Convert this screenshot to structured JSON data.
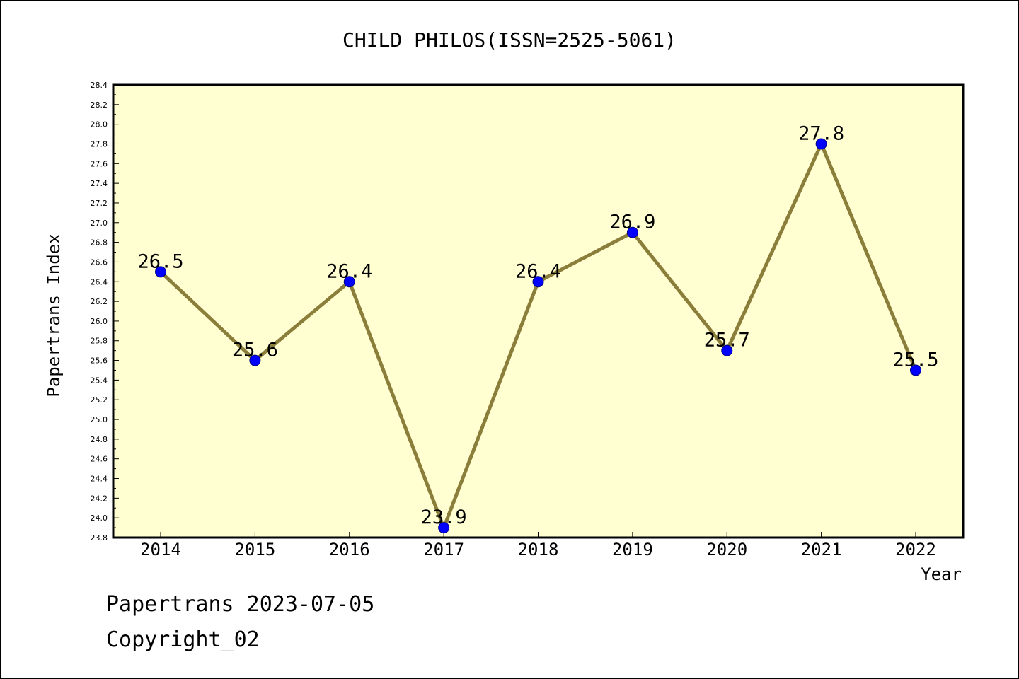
{
  "chart_data": {
    "type": "line",
    "title": "CHILD PHILOS(ISSN=2525-5061)",
    "xlabel": "Year",
    "ylabel": "Papertrans Index",
    "categories": [
      "2014",
      "2015",
      "2016",
      "2017",
      "2018",
      "2019",
      "2020",
      "2021",
      "2022"
    ],
    "values": [
      26.5,
      25.6,
      26.4,
      23.9,
      26.4,
      26.9,
      25.7,
      27.8,
      25.5
    ],
    "data_labels": [
      "26.5",
      "25.6",
      "26.4",
      "23.9",
      "26.4",
      "26.9",
      "25.7",
      "27.8",
      "25.5"
    ],
    "ylim": [
      23.8,
      28.4
    ],
    "ytick_step": 0.2,
    "yticks": [
      "23.8",
      "24.0",
      "24.2",
      "24.4",
      "24.6",
      "24.8",
      "25.0",
      "25.2",
      "25.4",
      "25.6",
      "25.8",
      "26.0",
      "26.2",
      "26.4",
      "26.6",
      "26.8",
      "27.0",
      "27.2",
      "27.4",
      "27.6",
      "27.8",
      "28.0",
      "28.2",
      "28.4"
    ],
    "grid": false,
    "legend": "none",
    "colors": {
      "plot_background": "#ffffd2",
      "line": "#8b7d3a",
      "marker_fill": "#0000ff",
      "marker_stroke": "#000080"
    }
  },
  "footer": {
    "line1": "Papertrans 2023-07-05",
    "line2": "Copyright_02"
  }
}
